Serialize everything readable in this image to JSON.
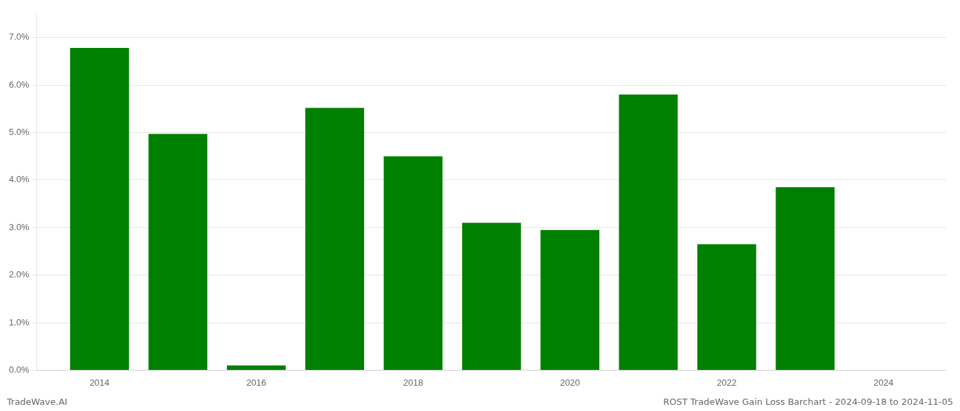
{
  "chart_data": {
    "type": "bar",
    "x": [
      2014,
      2015,
      2016,
      2017,
      2018,
      2019,
      2020,
      2021,
      2022,
      2023,
      2024
    ],
    "values": [
      0.0678,
      0.0497,
      0.001,
      0.0552,
      0.045,
      0.031,
      0.0295,
      0.058,
      0.0265,
      0.0385,
      0.0
    ],
    "color": "#008000",
    "xlim": [
      2013.2,
      2024.8
    ],
    "xticks": [
      2014,
      2016,
      2018,
      2020,
      2022,
      2024
    ],
    "ylim": [
      0,
      0.075
    ],
    "yticks": [
      {
        "value": 0.0,
        "label": "0.0%"
      },
      {
        "value": 0.01,
        "label": "1.0%"
      },
      {
        "value": 0.02,
        "label": "2.0%"
      },
      {
        "value": 0.03,
        "label": "3.0%"
      },
      {
        "value": 0.04,
        "label": "4.0%"
      },
      {
        "value": 0.05,
        "label": "5.0%"
      },
      {
        "value": 0.06,
        "label": "6.0%"
      },
      {
        "value": 0.07,
        "label": "7.0%"
      }
    ],
    "grid": "y",
    "annotations": [
      "TradeWave.AI",
      "ROST TradeWave Gain Loss Barchart - 2024-09-18 to 2024-11-05"
    ]
  }
}
